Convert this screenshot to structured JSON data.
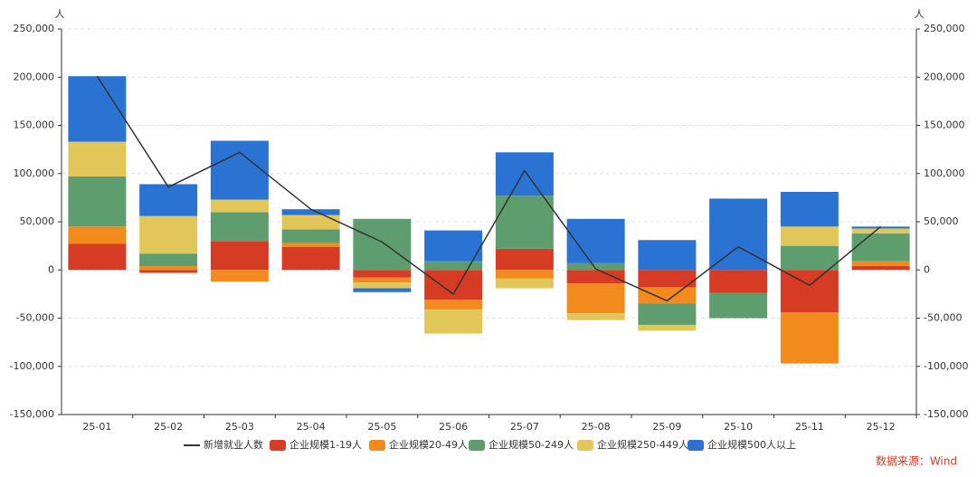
{
  "chart_data": {
    "type": "stacked-bar-line",
    "y_unit": "人",
    "source": "数据来源：Wind",
    "categories": [
      "25-01",
      "25-02",
      "25-03",
      "25-04",
      "25-05",
      "25-06",
      "25-07",
      "25-08",
      "25-09",
      "25-10",
      "25-11",
      "25-12"
    ],
    "ylim": [
      -150000,
      250000
    ],
    "yticks": [
      {
        "value": -150000,
        "label": "-150,000"
      },
      {
        "value": -100000,
        "label": "-100,000"
      },
      {
        "value": -50000,
        "label": "-50,000"
      },
      0,
      {
        "value": 50000,
        "label": "50,000"
      },
      {
        "value": 100000,
        "label": "100,000"
      },
      {
        "value": 150000,
        "label": "150,000"
      },
      {
        "value": 200000,
        "label": "200,000"
      },
      {
        "value": 250000,
        "label": "250,000"
      }
    ],
    "grid": true,
    "line": {
      "name": "新增就业人数",
      "color": "#333333",
      "values": [
        201000,
        86000,
        122000,
        63000,
        29000,
        -25000,
        103000,
        1000,
        -32000,
        24000,
        -16000,
        45000
      ]
    },
    "series": [
      {
        "name": "企业规模1-19人",
        "color": "#d63b24",
        "values": [
          27000,
          -3000,
          30000,
          24000,
          -8000,
          -31000,
          22000,
          -14000,
          -18000,
          -24000,
          -44000,
          4000
        ]
      },
      {
        "name": "企业规模20-49人",
        "color": "#f28a1e",
        "values": [
          18000,
          4000,
          -12000,
          4000,
          -5000,
          -10000,
          -9000,
          -31000,
          -17000,
          0,
          -53000,
          5000
        ]
      },
      {
        "name": "企业规模50-249人",
        "color": "#5e9e6e",
        "values": [
          52000,
          13000,
          30000,
          14000,
          53000,
          9000,
          55000,
          7000,
          -22000,
          -26000,
          25000,
          29000
        ]
      },
      {
        "name": "企业规模250-449人",
        "color": "#e3c65a",
        "values": [
          36000,
          39000,
          13000,
          15000,
          -6000,
          -25000,
          -10000,
          -7000,
          -6000,
          0,
          20000,
          5000
        ]
      },
      {
        "name": "企业规模500人以上",
        "color": "#2a73d2",
        "values": [
          68000,
          33000,
          61000,
          6000,
          -4000,
          32000,
          45000,
          46000,
          31000,
          74000,
          36000,
          2000
        ]
      }
    ]
  }
}
